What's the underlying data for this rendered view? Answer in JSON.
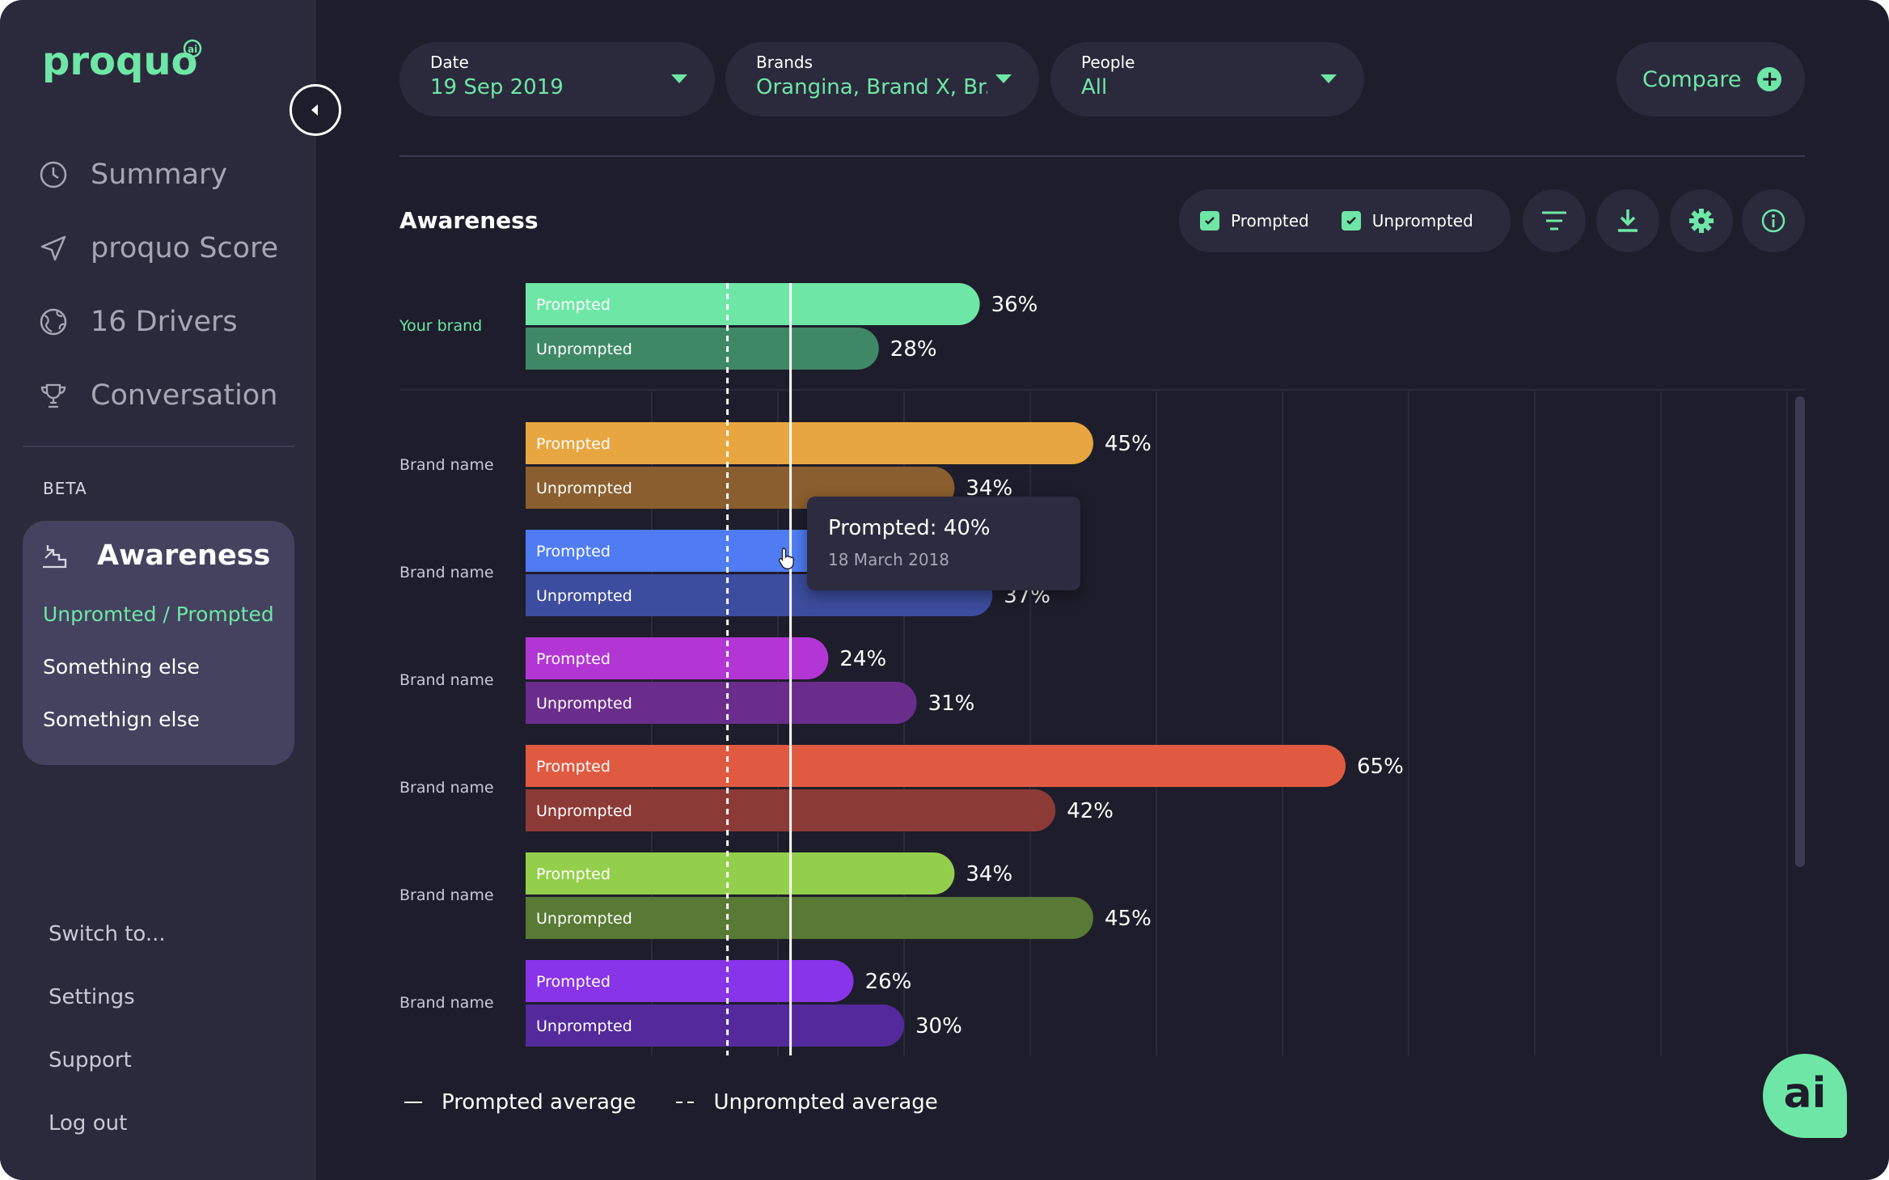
{
  "app": {
    "logo_text": "proquo",
    "logo_badge": "ai"
  },
  "sidebar": {
    "nav": [
      {
        "label": "Summary",
        "icon": "clock-icon"
      },
      {
        "label": "proquo Score",
        "icon": "send-icon"
      },
      {
        "label": "16 Drivers",
        "icon": "globe-icon"
      },
      {
        "label": "Conversation",
        "icon": "trophy-icon"
      }
    ],
    "beta_label": "BETA",
    "awareness": {
      "title": "Awareness",
      "icon": "stairs-icon",
      "items": [
        "Unpromted / Prompted",
        "Something else",
        "Somethign else"
      ]
    },
    "bottom": [
      "Switch to...",
      "Settings",
      "Support",
      "Log out"
    ]
  },
  "filters": {
    "date": {
      "label": "Date",
      "value": "19 Sep 2019"
    },
    "brands": {
      "label": "Brands",
      "value": "Orangina, Brand X, Br..."
    },
    "people": {
      "label": "People",
      "value": "All"
    },
    "compare_label": "Compare"
  },
  "chart_header": {
    "title": "Awareness",
    "toggle_prompted": "Prompted",
    "toggle_unprompted": "Unprompted",
    "icons": [
      "filter-icon",
      "download-icon",
      "gear-icon",
      "info-icon"
    ]
  },
  "chart_data": {
    "type": "bar",
    "orientation": "horizontal",
    "title": "Awareness",
    "unit": "%",
    "xlim": [
      0,
      100
    ],
    "bar_text": {
      "prompted": "Prompted",
      "unprompted": "Unprompted"
    },
    "prompted_average": 21,
    "unprompted_average": 16,
    "categories": [
      {
        "name": "Your brand",
        "highlight": true,
        "prompted": 36,
        "unprompted": 28,
        "prompted_color": "#6ee7a6",
        "unprompted_color": "#3f8866"
      },
      {
        "name": "Brand name",
        "prompted": 45,
        "unprompted": 34,
        "prompted_color": "#e8a640",
        "unprompted_color": "#8a5e2e"
      },
      {
        "name": "Brand name",
        "prompted": 40,
        "unprompted": 37,
        "prompted_color": "#4f7cf3",
        "unprompted_color": "#3c4c9e"
      },
      {
        "name": "Brand name",
        "prompted": 24,
        "unprompted": 31,
        "prompted_color": "#b236d4",
        "unprompted_color": "#6a2d8c"
      },
      {
        "name": "Brand name",
        "prompted": 65,
        "unprompted": 42,
        "prompted_color": "#e05a42",
        "unprompted_color": "#8c3a36"
      },
      {
        "name": "Brand name",
        "prompted": 34,
        "unprompted": 45,
        "prompted_color": "#93cf4a",
        "unprompted_color": "#587a34"
      },
      {
        "name": "Brand name",
        "prompted": 26,
        "unprompted": 30,
        "prompted_color": "#8834e8",
        "unprompted_color": "#53299c"
      }
    ],
    "value_labels": [
      {
        "prompted": "36%",
        "unprompted": "28%"
      },
      {
        "prompted": "45%",
        "unprompted": "34%"
      },
      {
        "prompted": "",
        "unprompted": "37%"
      },
      {
        "prompted": "24%",
        "unprompted": "31%"
      },
      {
        "prompted": "65%",
        "unprompted": "42%"
      },
      {
        "prompted": "34%",
        "unprompted": "45%"
      },
      {
        "prompted": "26%",
        "unprompted": "30%"
      }
    ],
    "legend": [
      "Prompted average",
      "Unprompted average"
    ]
  },
  "tooltip": {
    "title": "Prompted: 40%",
    "date": "18 March 2018"
  },
  "ai_button_label": "ai"
}
